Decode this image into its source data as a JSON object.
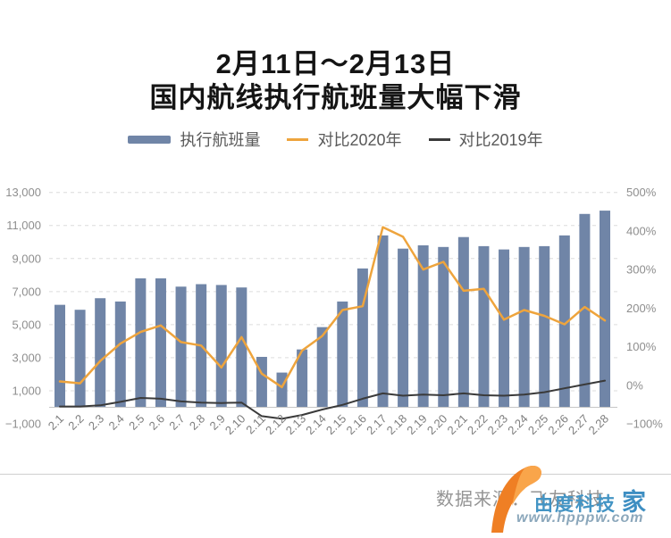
{
  "title": {
    "line1": "2月11日～2月13日",
    "line2": "国内航线执行航班量大幅下滑"
  },
  "legend": [
    {
      "label": "执行航班量",
      "type": "bar",
      "color": "#7085a7"
    },
    {
      "label": "对比2020年",
      "type": "line",
      "color": "#eea43d"
    },
    {
      "label": "对比2019年",
      "type": "line",
      "color": "#3a3a3a"
    }
  ],
  "footer": {
    "source_label": "数据来源：",
    "source_name": "飞友科技"
  },
  "watermark": {
    "text": "由度科技",
    "text_suffix": "家",
    "url": "www.hpppw.com"
  },
  "chart_data": {
    "type": "bar",
    "subtype": "bar+line dual axis",
    "categories": [
      "2.1",
      "2.2",
      "2.3",
      "2.4",
      "2.5",
      "2.6",
      "2.7",
      "2.8",
      "2.9",
      "2.10",
      "2.11",
      "2.12",
      "2.13",
      "2.14",
      "2.15",
      "2.16",
      "2.17",
      "2.18",
      "2.19",
      "2.20",
      "2.21",
      "2.22",
      "2.23",
      "2.24",
      "2.25",
      "2.26",
      "2.27",
      "2.28"
    ],
    "series": [
      {
        "name": "执行航班量",
        "type": "bar",
        "axis": "left",
        "color": "#7085a7",
        "values": [
          6200,
          5900,
          6600,
          6400,
          7800,
          7800,
          7300,
          7450,
          7400,
          7250,
          3050,
          2100,
          3500,
          4850,
          6400,
          8400,
          10400,
          9600,
          9800,
          9700,
          10300,
          9750,
          9550,
          9700,
          9750,
          10400,
          11700,
          11900
        ]
      },
      {
        "name": "对比2020年",
        "type": "line",
        "axis": "right",
        "color": "#eea43d",
        "values": [
          10,
          5,
          63,
          108,
          138,
          155,
          112,
          103,
          46,
          125,
          30,
          -5,
          90,
          128,
          195,
          205,
          410,
          385,
          300,
          320,
          245,
          250,
          170,
          195,
          180,
          158,
          203,
          168
        ]
      },
      {
        "name": "对比2019年",
        "type": "line",
        "axis": "right",
        "color": "#3a3a3a",
        "values": [
          -55,
          -55,
          -52,
          -43,
          -33,
          -35,
          -42,
          -45,
          -46,
          -45,
          -80,
          -87,
          -77,
          -63,
          -51,
          -35,
          -21,
          -27,
          -24,
          -26,
          -21,
          -26,
          -27,
          -24,
          -18,
          -8,
          2,
          12
        ]
      }
    ],
    "left_axis": {
      "min": -1000,
      "max": 13000,
      "ticks": [
        {
          "label": "13,000",
          "value": 13000
        },
        {
          "label": "11,000",
          "value": 11000
        },
        {
          "label": "9,000",
          "value": 9000
        },
        {
          "label": "7,000",
          "value": 7000
        },
        {
          "label": "5,000",
          "value": 5000
        },
        {
          "label": "3,000",
          "value": 3000
        },
        {
          "label": "1,000",
          "value": 1000
        },
        {
          "label": "−1,000",
          "value": -1000
        }
      ]
    },
    "right_axis": {
      "min": -100,
      "max": 500,
      "ticks": [
        {
          "label": "500%",
          "value": 500
        },
        {
          "label": "400%",
          "value": 400
        },
        {
          "label": "300%",
          "value": 300
        },
        {
          "label": "200%",
          "value": 200
        },
        {
          "label": "100%",
          "value": 100
        },
        {
          "label": "0%",
          "value": 0
        },
        {
          "label": "−100%",
          "value": -100
        }
      ]
    },
    "grid": "horizontal dashed",
    "legend_position": "top center"
  }
}
